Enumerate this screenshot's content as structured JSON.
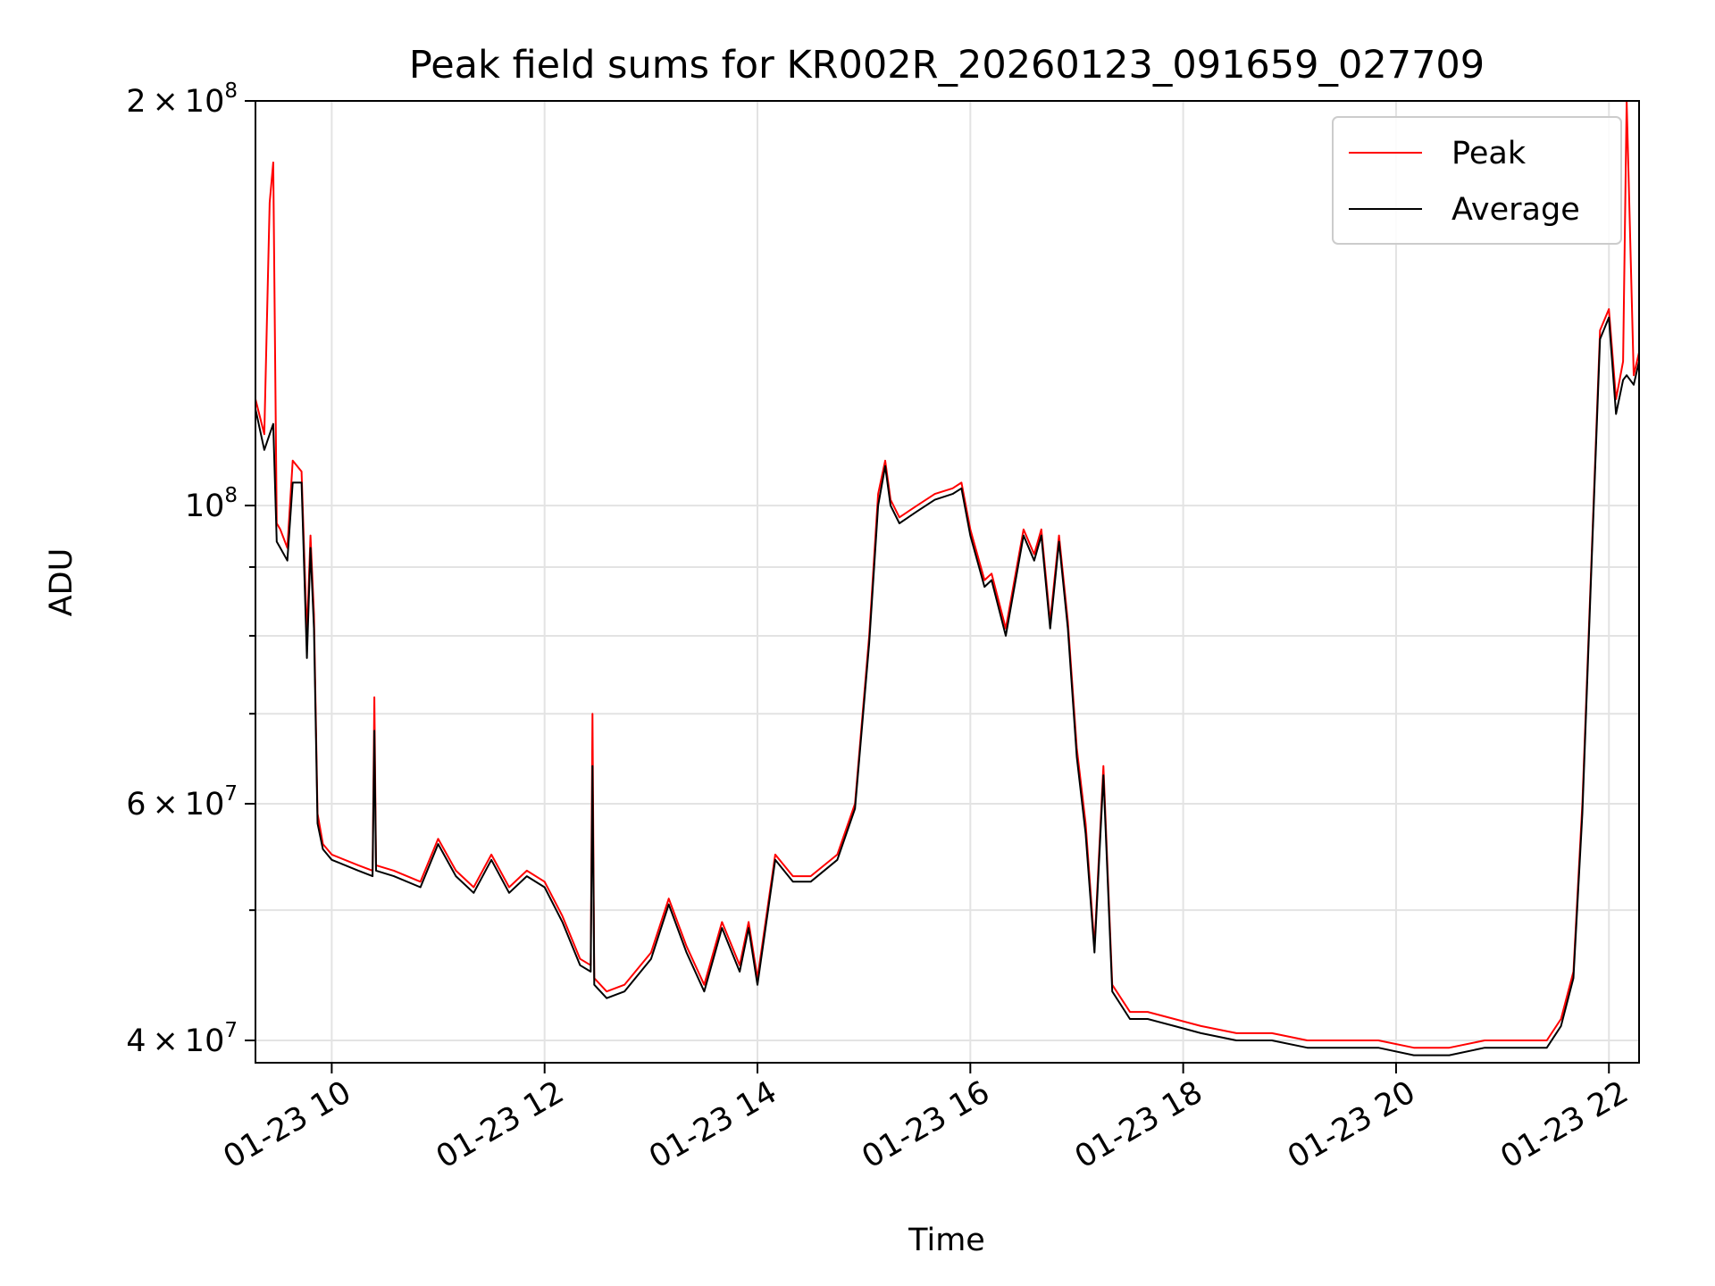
{
  "chart_data": {
    "type": "line",
    "title": "Peak field sums for KR002R_20260123_091659_027709",
    "xlabel": "Time",
    "ylabel": "ADU",
    "y_scale": "log",
    "ylim": [
      38500000,
      200000000
    ],
    "xlim": [
      "2026-01-23 09:17",
      "2026-01-23 22:17"
    ],
    "x_ticks": [
      {
        "t": "2026-01-23 10:00",
        "label": "01-23 10"
      },
      {
        "t": "2026-01-23 12:00",
        "label": "01-23 12"
      },
      {
        "t": "2026-01-23 14:00",
        "label": "01-23 14"
      },
      {
        "t": "2026-01-23 16:00",
        "label": "01-23 16"
      },
      {
        "t": "2026-01-23 18:00",
        "label": "01-23 18"
      },
      {
        "t": "2026-01-23 20:00",
        "label": "01-23 20"
      },
      {
        "t": "2026-01-23 22:00",
        "label": "01-23 22"
      }
    ],
    "y_major_ticks": [
      {
        "v": 40000000,
        "mant": "4",
        "exp": "7"
      },
      {
        "v": 60000000,
        "mant": "6",
        "exp": "7"
      },
      {
        "v": 100000000,
        "mant": "",
        "exp": "8"
      },
      {
        "v": 200000000,
        "mant": "2",
        "exp": "8"
      }
    ],
    "y_minor_ticks": [
      50000000,
      70000000,
      80000000,
      90000000
    ],
    "grid": true,
    "legend": {
      "position": "top-right",
      "entries": [
        "Peak",
        "Average"
      ]
    },
    "x": [
      "2026-01-23 09:17",
      "2026-01-23 09:22",
      "2026-01-23 09:25",
      "2026-01-23 09:27",
      "2026-01-23 09:29",
      "2026-01-23 09:31",
      "2026-01-23 09:35",
      "2026-01-23 09:38",
      "2026-01-23 09:43",
      "2026-01-23 09:46",
      "2026-01-23 09:48",
      "2026-01-23 09:50",
      "2026-01-23 09:52",
      "2026-01-23 09:55",
      "2026-01-23 10:00",
      "2026-01-23 10:15",
      "2026-01-23 10:23",
      "2026-01-23 10:24",
      "2026-01-23 10:25",
      "2026-01-23 10:35",
      "2026-01-23 10:50",
      "2026-01-23 11:00",
      "2026-01-23 11:10",
      "2026-01-23 11:20",
      "2026-01-23 11:30",
      "2026-01-23 11:40",
      "2026-01-23 11:50",
      "2026-01-23 12:00",
      "2026-01-23 12:10",
      "2026-01-23 12:20",
      "2026-01-23 12:26",
      "2026-01-23 12:27",
      "2026-01-23 12:28",
      "2026-01-23 12:35",
      "2026-01-23 12:45",
      "2026-01-23 13:00",
      "2026-01-23 13:10",
      "2026-01-23 13:20",
      "2026-01-23 13:30",
      "2026-01-23 13:40",
      "2026-01-23 13:50",
      "2026-01-23 13:55",
      "2026-01-23 14:00",
      "2026-01-23 14:10",
      "2026-01-23 14:20",
      "2026-01-23 14:30",
      "2026-01-23 14:45",
      "2026-01-23 14:55",
      "2026-01-23 15:03",
      "2026-01-23 15:08",
      "2026-01-23 15:12",
      "2026-01-23 15:15",
      "2026-01-23 15:20",
      "2026-01-23 15:30",
      "2026-01-23 15:40",
      "2026-01-23 15:50",
      "2026-01-23 15:55",
      "2026-01-23 16:00",
      "2026-01-23 16:08",
      "2026-01-23 16:12",
      "2026-01-23 16:20",
      "2026-01-23 16:30",
      "2026-01-23 16:36",
      "2026-01-23 16:40",
      "2026-01-23 16:45",
      "2026-01-23 16:50",
      "2026-01-23 16:55",
      "2026-01-23 17:00",
      "2026-01-23 17:05",
      "2026-01-23 17:10",
      "2026-01-23 17:15",
      "2026-01-23 17:20",
      "2026-01-23 17:30",
      "2026-01-23 17:40",
      "2026-01-23 17:55",
      "2026-01-23 18:10",
      "2026-01-23 18:30",
      "2026-01-23 18:50",
      "2026-01-23 19:10",
      "2026-01-23 19:30",
      "2026-01-23 19:50",
      "2026-01-23 20:10",
      "2026-01-23 20:30",
      "2026-01-23 20:50",
      "2026-01-23 21:10",
      "2026-01-23 21:25",
      "2026-01-23 21:33",
      "2026-01-23 21:40",
      "2026-01-23 21:45",
      "2026-01-23 21:50",
      "2026-01-23 21:55",
      "2026-01-23 22:00",
      "2026-01-23 22:04",
      "2026-01-23 22:08",
      "2026-01-23 22:10",
      "2026-01-23 22:14",
      "2026-01-23 22:17"
    ],
    "series": [
      {
        "name": "Peak",
        "color": "#ff0000",
        "values": [
          120000000,
          113000000,
          168000000,
          180000000,
          97000000,
          96000000,
          93000000,
          108000000,
          106000000,
          80000000,
          95000000,
          83000000,
          59000000,
          56000000,
          55000000,
          54000000,
          53500000,
          72000000,
          54000000,
          53500000,
          52500000,
          56500000,
          53500000,
          52000000,
          55000000,
          52000000,
          53500000,
          52500000,
          49500000,
          46000000,
          45500000,
          70000000,
          44500000,
          43500000,
          44000000,
          46500000,
          51000000,
          47000000,
          44000000,
          49000000,
          45500000,
          49000000,
          44500000,
          55000000,
          53000000,
          53000000,
          55000000,
          60000000,
          80000000,
          102000000,
          108000000,
          101000000,
          98000000,
          100000000,
          102000000,
          103000000,
          104000000,
          96000000,
          88000000,
          89000000,
          81000000,
          96000000,
          92000000,
          96000000,
          82000000,
          95000000,
          82000000,
          66000000,
          58000000,
          47000000,
          64000000,
          44000000,
          42000000,
          42000000,
          41500000,
          41000000,
          40500000,
          40500000,
          40000000,
          40000000,
          40000000,
          39500000,
          39500000,
          40000000,
          40000000,
          40000000,
          41500000,
          45000000,
          60000000,
          90000000,
          135000000,
          140000000,
          120000000,
          128000000,
          200000000,
          125000000,
          130000000
        ]
      },
      {
        "name": "Average",
        "color": "#000000",
        "values": [
          118000000,
          110000000,
          113000000,
          115000000,
          94000000,
          93000000,
          91000000,
          104000000,
          104000000,
          77000000,
          93000000,
          81000000,
          58000000,
          55500000,
          54500000,
          53500000,
          53000000,
          68000000,
          53500000,
          53000000,
          52000000,
          56000000,
          53000000,
          51500000,
          54500000,
          51500000,
          53000000,
          52000000,
          49000000,
          45500000,
          45000000,
          64000000,
          44000000,
          43000000,
          43500000,
          46000000,
          50500000,
          46500000,
          43500000,
          48500000,
          45000000,
          48500000,
          44000000,
          54500000,
          52500000,
          52500000,
          54500000,
          59500000,
          79000000,
          100000000,
          107000000,
          100000000,
          97000000,
          99000000,
          101000000,
          102000000,
          103000000,
          95000000,
          87000000,
          88000000,
          80000000,
          95000000,
          91000000,
          95000000,
          81000000,
          94000000,
          81000000,
          65000000,
          57000000,
          46500000,
          63000000,
          43500000,
          41500000,
          41500000,
          41000000,
          40500000,
          40000000,
          40000000,
          39500000,
          39500000,
          39500000,
          39000000,
          39000000,
          39500000,
          39500000,
          39500000,
          41000000,
          44500000,
          59000000,
          89000000,
          133000000,
          138000000,
          117000000,
          124000000,
          125000000,
          123000000,
          128000000
        ]
      }
    ]
  }
}
